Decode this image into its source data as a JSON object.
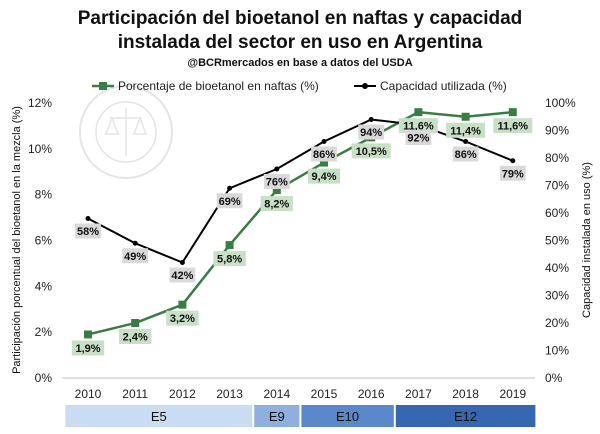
{
  "chart_data": {
    "type": "line",
    "title": "Participación del bioetanol en naftas y capacidad instalada del sector en uso en Argentina",
    "subtitle": "@BCRmercados en base a datos del USDA",
    "categories": [
      "2010",
      "2011",
      "2012",
      "2013",
      "2014",
      "2015",
      "2016",
      "2017",
      "2018",
      "2019"
    ],
    "series": [
      {
        "name": "Porcentaje de bioetanol en naftas (%)",
        "axis": "left",
        "color": "#3a7d44",
        "values": [
          1.9,
          2.4,
          3.2,
          5.8,
          8.2,
          9.4,
          10.5,
          11.6,
          11.4,
          11.6
        ],
        "labels": [
          "1,9%",
          "2,4%",
          "3,2%",
          "5,8%",
          "8,2%",
          "9,4%",
          "10,5%",
          "11,6%",
          "11,4%",
          "11,6%"
        ]
      },
      {
        "name": "Capacidad utilizada (%)",
        "axis": "right",
        "color": "#000000",
        "values": [
          58,
          49,
          42,
          69,
          76,
          86,
          94,
          92,
          86,
          79
        ],
        "labels": [
          "58%",
          "49%",
          "42%",
          "69%",
          "76%",
          "86%",
          "94%",
          "92%",
          "86%",
          "79%"
        ]
      }
    ],
    "y_left": {
      "label": "Participación porcentual del bioetanol en la mezcla (%)",
      "min": 0,
      "max": 12,
      "ticks": [
        "0%",
        "2%",
        "4%",
        "6%",
        "8%",
        "10%",
        "12%"
      ]
    },
    "y_right": {
      "label": "Capacidad instalada en uso (%)",
      "min": 0,
      "max": 100,
      "ticks": [
        "0%",
        "10%",
        "20%",
        "30%",
        "40%",
        "50%",
        "60%",
        "70%",
        "80%",
        "90%",
        "100%"
      ]
    },
    "legend_position": "top",
    "grid": false,
    "bands": [
      {
        "label": "E5",
        "from": "2010",
        "to": "2013",
        "color": "#c9dcf3"
      },
      {
        "label": "E9",
        "from": "2014",
        "to": "2014",
        "color": "#8fb0dd"
      },
      {
        "label": "E10",
        "from": "2015",
        "to": "2016",
        "color": "#5b88c8"
      },
      {
        "label": "E12",
        "from": "2017",
        "to": "2019",
        "color": "#3667b0"
      }
    ],
    "watermark": "BOLSA DE COMERCIO DE ROSARIO"
  }
}
